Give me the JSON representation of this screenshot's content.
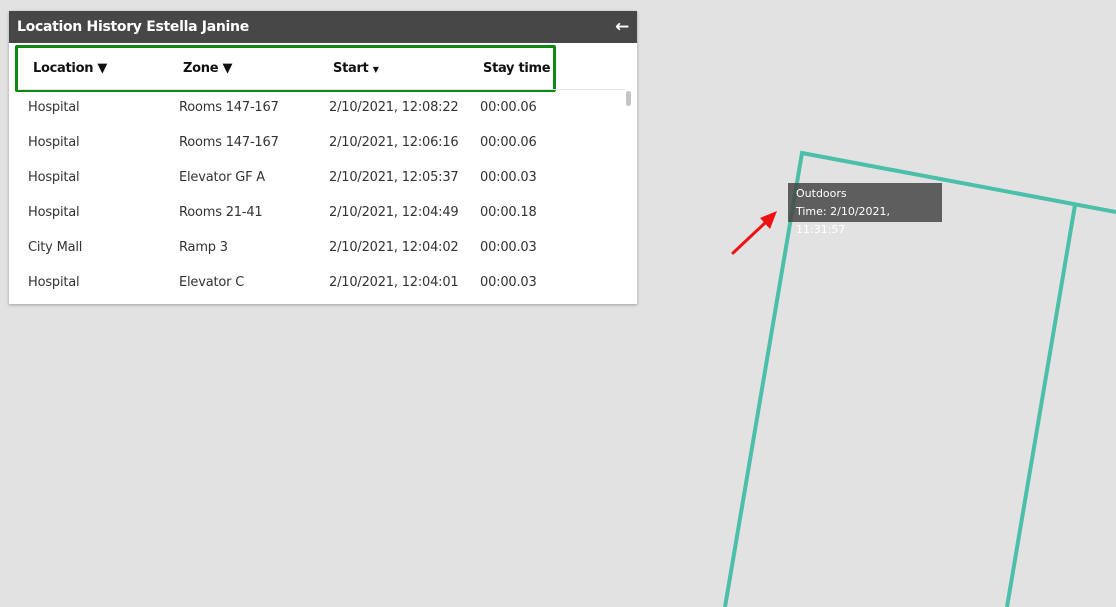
{
  "panel": {
    "title": "Location History Estella Janine",
    "back_icon": "arrow-left-icon"
  },
  "columns": [
    {
      "label": "Location",
      "icon": "filter-icon"
    },
    {
      "label": "Zone",
      "icon": "filter-icon"
    },
    {
      "label": "Start",
      "icon": "caret-down-icon"
    },
    {
      "label": "Stay time"
    }
  ],
  "rows": [
    [
      "Hospital",
      "Rooms 147-167",
      "2/10/2021, 12:08:22",
      "00:00.06"
    ],
    [
      "Hospital",
      "Rooms 147-167",
      "2/10/2021, 12:06:16",
      "00:00.06"
    ],
    [
      "Hospital",
      "Elevator GF A",
      "2/10/2021, 12:05:37",
      "00:00.03"
    ],
    [
      "Hospital",
      "Rooms 21-41",
      "2/10/2021, 12:04:49",
      "00:00.18"
    ],
    [
      "City Mall",
      "Ramp 3",
      "2/10/2021, 12:04:02",
      "00:00.03"
    ],
    [
      "Hospital",
      "Elevator C",
      "2/10/2021, 12:04:01",
      "00:00.03"
    ]
  ],
  "tooltip": {
    "title": "Outdoors",
    "time": "Time: 2/10/2021, 11:31:57"
  },
  "colors": {
    "zone_outline": "#4bbfaa",
    "highlight": "#0a8a12",
    "arrow": "#ee1111",
    "header": "#474747"
  }
}
